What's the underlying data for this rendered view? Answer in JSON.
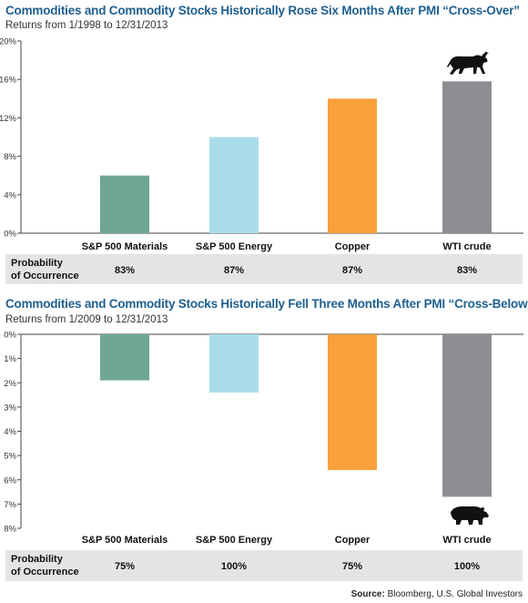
{
  "colors": {
    "title": "#1f5f8f",
    "bars": [
      "#6fa892",
      "#a9dcea",
      "#f7a03c",
      "#8e8e92"
    ],
    "prob_band": "#e4e4e4"
  },
  "icons": {
    "top": "bull-icon",
    "bottom": "bear-icon"
  },
  "probability_label_line1": "Probability",
  "probability_label_line2": "of Occurrence",
  "source": {
    "label": "Source:",
    "text": "Bloomberg, U.S. Global Investors"
  },
  "chart_data": [
    {
      "type": "bar",
      "title": "Commodities and Commodity Stocks Historically Rose Six Months After PMI “Cross-Over”",
      "subtitle": "Returns from 1/1998 to 12/31/2013",
      "categories": [
        "S&P 500 Materials",
        "S&P 500 Energy",
        "Copper",
        "WTI crude"
      ],
      "values": [
        6,
        10,
        14,
        15.8
      ],
      "unit": "%",
      "ylim": [
        0,
        20
      ],
      "yticks": [
        "0%",
        "4%",
        "8%",
        "12%",
        "16%",
        "20%"
      ],
      "probability": [
        "83%",
        "87%",
        "87%",
        "83%"
      ],
      "grid": false
    },
    {
      "type": "bar",
      "title": "Commodities and Commodity Stocks Historically Fell Three Months After PMI “Cross-Below”",
      "subtitle": "Returns from 1/2009 to 12/31/2013",
      "categories": [
        "S&P 500 Materials",
        "S&P 500 Energy",
        "Copper",
        "WTI crude"
      ],
      "values": [
        -1.9,
        -2.4,
        -5.6,
        -6.7
      ],
      "unit": "%",
      "ylim": [
        -8,
        0
      ],
      "yticks": [
        "0%",
        "1%",
        "2%",
        "3%",
        "4%",
        "5%",
        "6%",
        "7%",
        "8%"
      ],
      "probability": [
        "75%",
        "100%",
        "75%",
        "100%"
      ],
      "grid": false
    }
  ]
}
